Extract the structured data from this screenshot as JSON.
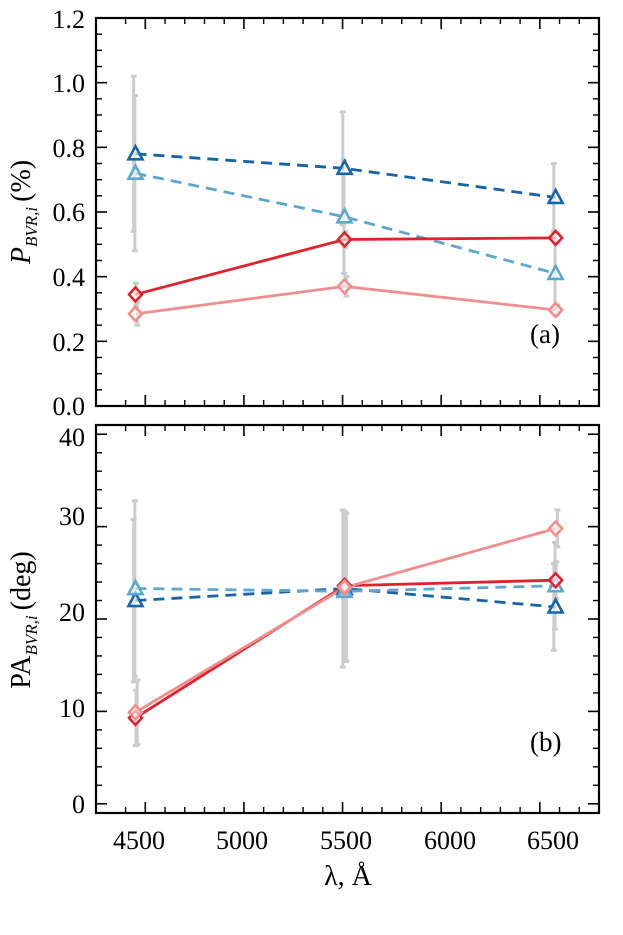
{
  "chart_data": [
    {
      "type": "line",
      "panel_label": "(a)",
      "ylabel": {
        "main": "P",
        "subscript": "BVR,i",
        "unit": "(%)"
      },
      "xlabel": "",
      "ylim": [
        0.0,
        1.2
      ],
      "yticks": [
        "0.0",
        "0.2",
        "0.4",
        "0.6",
        "0.8",
        "1.0",
        "1.2"
      ],
      "xlim": [
        4250,
        6800
      ],
      "xticks": [
        "4500",
        "5000",
        "5500",
        "6000",
        "6500"
      ],
      "grid": false,
      "x": [
        4450,
        5510,
        6580
      ],
      "series": [
        {
          "marker": "triangle",
          "linestyle": "dashed",
          "color": "#1565a8",
          "values": [
            0.78,
            0.735,
            0.645
          ],
          "err": [
            0.24,
            0.175,
            0.105
          ]
        },
        {
          "marker": "triangle",
          "linestyle": "dashed",
          "color": "#5aa7cf",
          "values": [
            0.72,
            0.585,
            0.41
          ],
          "err": [
            0.24,
            0.175,
            0.105
          ]
        },
        {
          "marker": "diamond",
          "linestyle": "solid",
          "color": "#e0222c",
          "values": [
            0.345,
            0.515,
            0.52
          ],
          "err": [
            0.035,
            0.025,
            0.015
          ]
        },
        {
          "marker": "diamond",
          "linestyle": "solid",
          "color": "#f08e8e",
          "values": [
            0.285,
            0.37,
            0.297
          ],
          "err": [
            0.035,
            0.03,
            0.015
          ]
        }
      ]
    },
    {
      "type": "line",
      "panel_label": "(b)",
      "ylabel": {
        "main": "PA",
        "subscript": "BVR,i",
        "unit": "(deg)"
      },
      "xlabel": "λ, Å",
      "ylim": [
        -1,
        41
      ],
      "yticks": [
        "0",
        "10",
        "20",
        "30",
        "40"
      ],
      "xlim": [
        4250,
        6800
      ],
      "xticks": [
        "4500",
        "5000",
        "5500",
        "6000",
        "6500"
      ],
      "grid": false,
      "x": [
        4450,
        5510,
        6580
      ],
      "series": [
        {
          "marker": "triangle",
          "linestyle": "dashed",
          "color": "#1565a8",
          "values": [
            22.0,
            23.3,
            21.3
          ],
          "err": [
            8.8,
            8.5,
            4.7
          ]
        },
        {
          "marker": "triangle",
          "linestyle": "dashed",
          "color": "#5aa7cf",
          "values": [
            23.3,
            23.0,
            23.6
          ],
          "err": [
            9.5,
            6.5,
            4.7
          ]
        },
        {
          "marker": "diamond",
          "linestyle": "solid",
          "color": "#e0222c",
          "values": [
            9.3,
            23.6,
            24.2
          ],
          "err": [
            3.0,
            8.0,
            2.0
          ]
        },
        {
          "marker": "diamond",
          "linestyle": "solid",
          "color": "#f08e8e",
          "values": [
            9.9,
            23.4,
            29.8
          ],
          "err": [
            3.5,
            8.0,
            2.0
          ]
        }
      ]
    }
  ]
}
